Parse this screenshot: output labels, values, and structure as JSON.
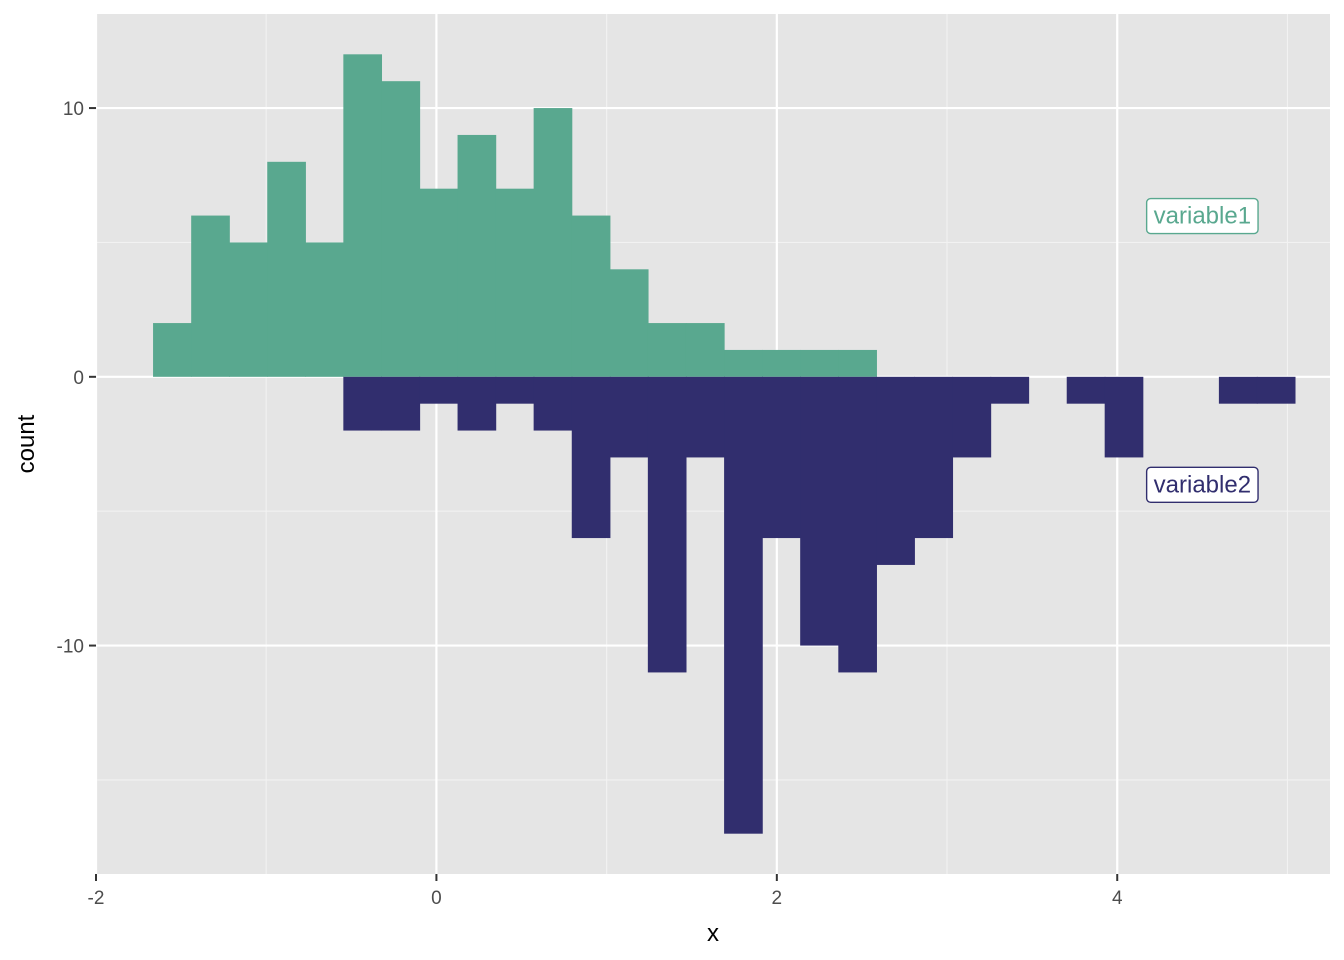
{
  "chart_data": {
    "type": "bar",
    "subtype": "mirrored-histogram",
    "title": "",
    "xlabel": "x",
    "ylabel": "count",
    "xlim": [
      -2,
      5.25
    ],
    "ylim": [
      -18.5,
      13.5
    ],
    "x_ticks": [
      -2,
      0,
      2,
      4
    ],
    "x_tick_labels": [
      "-2",
      "0",
      "2",
      "4"
    ],
    "y_ticks": [
      10,
      0,
      -10
    ],
    "y_tick_labels": [
      "10",
      "0",
      "-10"
    ],
    "grid": true,
    "legend": "none",
    "bin_width": 0.2236,
    "series": [
      {
        "name": "variable1",
        "label_text": "variable1",
        "color": "#59a88f",
        "label_position": {
          "x": 4.5,
          "y": 6
        },
        "bin_centers": [
          -1.553,
          -1.329,
          -1.106,
          -0.882,
          -0.658,
          -0.435,
          -0.211,
          0.012,
          0.236,
          0.46,
          0.683,
          0.907,
          1.131,
          1.354,
          1.578,
          1.802,
          2.025,
          2.249,
          2.473
        ],
        "values": [
          2,
          6,
          5,
          8,
          5,
          12,
          11,
          7,
          9,
          7,
          10,
          6,
          4,
          2,
          2,
          1,
          1,
          1,
          1
        ]
      },
      {
        "name": "variable2",
        "label_text": "variable2",
        "color": "#312e6e",
        "label_position": {
          "x": 4.5,
          "y": -4
        },
        "bin_centers": [
          -0.435,
          -0.211,
          0.012,
          0.236,
          0.46,
          0.683,
          0.907,
          1.131,
          1.354,
          1.578,
          1.802,
          2.025,
          2.249,
          2.473,
          2.696,
          2.92,
          3.144,
          3.367,
          3.815,
          4.038,
          4.709,
          4.932
        ],
        "values": [
          -2,
          -2,
          -1,
          -2,
          -1,
          -2,
          -6,
          -3,
          -11,
          -3,
          -17,
          -6,
          -10,
          -11,
          -7,
          -6,
          -3,
          -1,
          -1,
          -3,
          -1,
          -1
        ]
      }
    ]
  },
  "colors": {
    "panel_background": "#e5e5e5",
    "grid_major": "#ffffff",
    "grid_minor": "#f2f2f2",
    "tick_label": "#4d4d4d",
    "axis_title": "#000000"
  }
}
